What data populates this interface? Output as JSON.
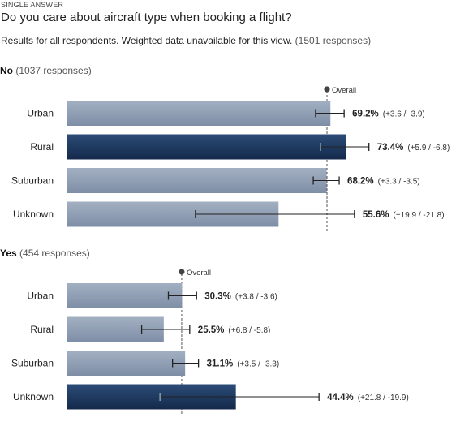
{
  "header": {
    "answer_type": "SINGLE ANSWER",
    "question": "Do you care about aircraft type when booking a flight?",
    "subtitle": "Results for all respondents. Weighted data unavailable for this view.",
    "subtitle_count": "(1501 responses)"
  },
  "colors": {
    "bar_normal": "#8c9bb0",
    "bar_highlight": "#1f3a5f",
    "error_bar": "#222222",
    "overall_line": "#555555"
  },
  "chart_data": [
    {
      "type": "bar",
      "orientation": "horizontal",
      "title_label": "No",
      "title_count": "(1037 responses)",
      "overall_label": "Overall",
      "overall_value": 68.3,
      "xlim": [
        0,
        100
      ],
      "categories": [
        "Urban",
        "Rural",
        "Suburban",
        "Unknown"
      ],
      "values": [
        69.2,
        73.4,
        68.2,
        55.6
      ],
      "value_labels": [
        "69.2%",
        "73.4%",
        "68.2%",
        "55.6%"
      ],
      "ci_plus": [
        3.6,
        5.9,
        3.3,
        19.9
      ],
      "ci_minus": [
        3.9,
        6.8,
        3.5,
        21.8
      ],
      "ci_labels": [
        "(+3.6 / -3.9)",
        "(+5.9 / -6.8)",
        "(+3.3 / -3.5)",
        "(+19.9 / -21.8)"
      ],
      "highlight_index": 1
    },
    {
      "type": "bar",
      "orientation": "horizontal",
      "title_label": "Yes",
      "title_count": "(454 responses)",
      "overall_label": "Overall",
      "overall_value": 30.2,
      "xlim": [
        0,
        100
      ],
      "categories": [
        "Urban",
        "Rural",
        "Suburban",
        "Unknown"
      ],
      "values": [
        30.3,
        25.5,
        31.1,
        44.4
      ],
      "value_labels": [
        "30.3%",
        "25.5%",
        "31.1%",
        "44.4%"
      ],
      "ci_plus": [
        3.8,
        6.8,
        3.5,
        21.8
      ],
      "ci_minus": [
        3.6,
        5.8,
        3.3,
        19.9
      ],
      "ci_labels": [
        "(+3.8 / -3.6)",
        "(+6.8 / -5.8)",
        "(+3.5 / -3.3)",
        "(+21.8 / -19.9)"
      ],
      "highlight_index": 3
    }
  ]
}
